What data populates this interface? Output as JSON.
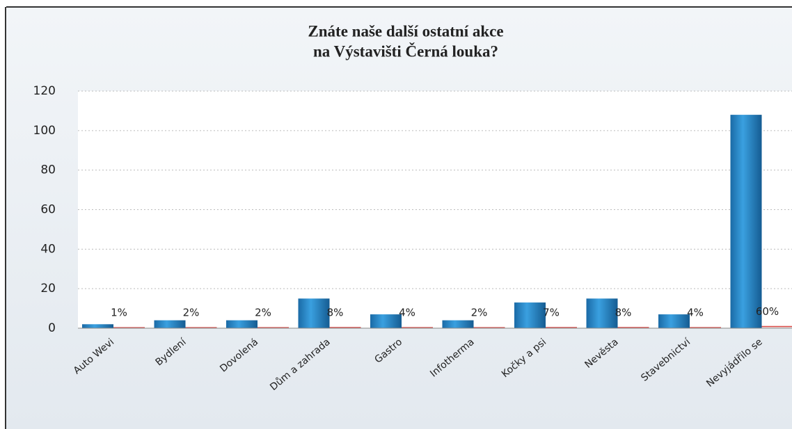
{
  "chart_data": {
    "type": "bar",
    "title": [
      "Znáte naše další ostatní akce",
      "na Výstavišti Černá louka?"
    ],
    "categories": [
      "Auto Wevi",
      "Bydlení",
      "Dovolená",
      "Dům a zahrada",
      "Gastro",
      "Infotherma",
      "Kočky a psi",
      "Nevěsta",
      "Stavebnictví",
      "Nevyjádřilo se"
    ],
    "series": [
      {
        "color": "#1f7fc4",
        "values": [
          2,
          4,
          4,
          15,
          7,
          4,
          13,
          15,
          7,
          108
        ]
      },
      {
        "color": "#d9534f",
        "values": [
          0.01,
          0.02,
          0.02,
          0.08,
          0.04,
          0.02,
          0.07,
          0.08,
          0.04,
          0.6
        ],
        "value_labels": [
          "1%",
          "2%",
          "2%",
          "8%",
          "4%",
          "2%",
          "7%",
          "8%",
          "4%",
          "60%"
        ]
      }
    ],
    "ylim": [
      0,
      120
    ],
    "yticks": [
      0,
      20,
      40,
      60,
      80,
      100,
      120
    ],
    "grid": true
  }
}
